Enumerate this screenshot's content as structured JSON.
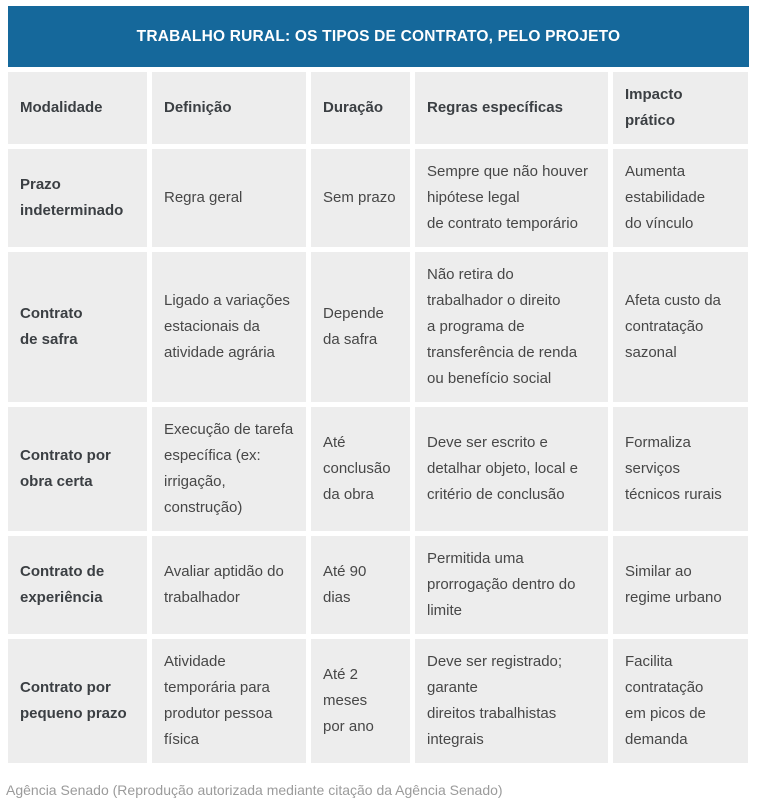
{
  "chart_data": {
    "type": "table",
    "title": "TRABALHO RURAL: OS TIPOS DE CONTRATO, PELO PROJETO",
    "columns": [
      "Modalidade",
      "Definição",
      "Duração",
      "Regras específicas",
      "Impacto\nprático"
    ],
    "rows": [
      [
        "Prazo\nindeterminado",
        "Regra geral",
        "Sem prazo",
        "Sempre que não houver\nhipótese legal\nde contrato temporário",
        "Aumenta\nestabilidade\ndo vínculo"
      ],
      [
        "Contrato\nde safra",
        "Ligado a variações\nestacionais da\natividade agrária",
        "Depende\nda safra",
        "Não retira do\ntrabalhador o direito\na programa de\ntransferência de renda\nou benefício social",
        "Afeta custo da\ncontratação\nsazonal"
      ],
      [
        "Contrato por\nobra certa",
        "Execução de tarefa\nespecífica (ex:\nirrigação,\nconstrução)",
        "Até\nconclusão\nda obra",
        "Deve ser escrito e\ndetalhar objeto, local e\ncritério de conclusão",
        "Formaliza\nserviços\ntécnicos rurais"
      ],
      [
        "Contrato de\nexperiência",
        "Avaliar aptidão do\ntrabalhador",
        "Até 90 dias",
        "Permitida uma\nprorrogação dentro do\nlimite",
        "Similar ao\nregime urbano"
      ],
      [
        "Contrato por\npequeno prazo",
        "Atividade\ntemporária para\nprodutor pessoa\nfísica",
        "Até 2\nmeses\npor ano",
        "Deve ser registrado;\ngarante\ndireitos trabalhistas\nintegrais",
        "Facilita\ncontratação\nem picos de\ndemanda"
      ]
    ],
    "source_note": "Agência Senado (Reprodução autorizada mediante citação da Agência Senado)",
    "layout": {
      "legend": "none",
      "grid": "off"
    }
  },
  "colors": {
    "header_bg": "#15689B",
    "cell_bg": "#EDEDED",
    "title_text": "#FFFFFF",
    "body_text": "#474747",
    "bold_text": "#3B3F43",
    "footer_text": "#9B9B9B",
    "page_bg": "#FFFFFF"
  }
}
